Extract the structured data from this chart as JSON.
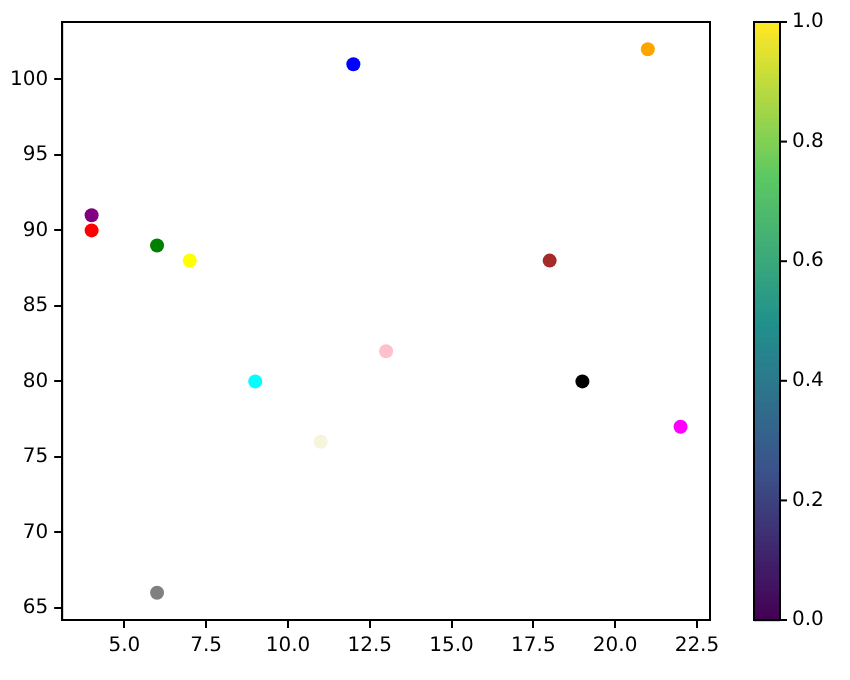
{
  "chart_data": {
    "type": "scatter",
    "marker": "circle",
    "grid": false,
    "x": [
      4,
      4,
      6,
      7,
      12,
      21,
      18,
      9,
      13,
      11,
      19,
      22,
      6
    ],
    "values": [
      91,
      90,
      89,
      88,
      101,
      102,
      88,
      80,
      82,
      76,
      80,
      77,
      66
    ],
    "colors": [
      "#800080",
      "#ff0000",
      "#008000",
      "#ffff00",
      "#0000ff",
      "#ffa500",
      "#a52a2a",
      "#00ffff",
      "#ffc0cb",
      "#f5f5dc",
      "#000000",
      "#ff00ff",
      "#808080"
    ],
    "xlim": [
      3.1,
      22.9
    ],
    "xticks": [
      {
        "value": 5,
        "label": "5.0"
      },
      {
        "value": 7.5,
        "label": "7.5"
      },
      {
        "value": 10,
        "label": "10.0"
      },
      {
        "value": 12.5,
        "label": "12.5"
      },
      {
        "value": 15,
        "label": "15.0"
      },
      {
        "value": 17.5,
        "label": "17.5"
      },
      {
        "value": 20,
        "label": "20.0"
      },
      {
        "value": 22.5,
        "label": "22.5"
      }
    ],
    "ylim": [
      64.2,
      103.8
    ],
    "yticks": [
      65,
      70,
      75,
      80,
      85,
      90,
      95,
      100
    ],
    "clim": [
      0,
      1
    ],
    "cticks": [
      {
        "value": 0,
        "label": "0.0"
      },
      {
        "value": 0.2,
        "label": "0.2"
      },
      {
        "value": 0.4,
        "label": "0.4"
      },
      {
        "value": 0.6,
        "label": "0.6"
      },
      {
        "value": 0.8,
        "label": "0.8"
      },
      {
        "value": 1,
        "label": "1.0"
      }
    ]
  }
}
